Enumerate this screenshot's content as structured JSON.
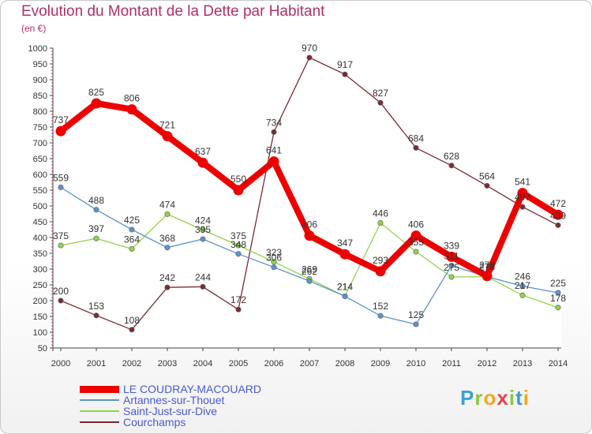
{
  "title": "Evolution du Montant de la Dette par Habitant",
  "unit": "(en €)",
  "brand": {
    "letters": [
      {
        "ch": "P",
        "color": "#3aa0d8"
      },
      {
        "ch": "r",
        "color": "#8cc63f"
      },
      {
        "ch": "o",
        "color": "#f5a623"
      },
      {
        "ch": "x",
        "color": "#e8434a"
      },
      {
        "ch": "i",
        "color": "#8cc63f"
      },
      {
        "ch": "t",
        "color": "#3aa0d8"
      },
      {
        "ch": "i",
        "color": "#f5a623"
      }
    ]
  },
  "chart_data": {
    "type": "line",
    "x": [
      "2000",
      "2001",
      "2002",
      "2003",
      "2004",
      "2005",
      "2006",
      "2007",
      "2008",
      "2009",
      "2010",
      "2011",
      "2012",
      "2013",
      "2014"
    ],
    "ylim": [
      50,
      1000
    ],
    "yticks": [
      50,
      100,
      150,
      200,
      250,
      300,
      350,
      400,
      450,
      500,
      550,
      600,
      650,
      700,
      750,
      800,
      850,
      900,
      950,
      1000
    ],
    "grid": false,
    "legend_position": "bottom-left",
    "series": [
      {
        "name": "LE COUDRAY-MACOUARD",
        "color": "#ee0000",
        "values": [
          737,
          825,
          806,
          721,
          637,
          550,
          641,
          406,
          347,
          293,
          406,
          339,
          278,
          541,
          472
        ],
        "labels": [
          "737",
          "825",
          "806",
          "721",
          "637",
          "550",
          "641",
          "406",
          "347",
          "293",
          "406",
          "339",
          "278",
          "541",
          "472"
        ]
      },
      {
        "name": "Artannes-sur-Thouet",
        "color": "#5b93cc",
        "values": [
          559,
          488,
          425,
          368,
          395,
          348,
          306,
          262,
          214,
          152,
          125,
          311,
          276,
          246,
          225
        ],
        "labels": [
          "559",
          "488",
          "425",
          "368",
          "395",
          "348",
          "306",
          "262",
          "214",
          "152",
          "125",
          "311",
          "276",
          "246",
          "225"
        ]
      },
      {
        "name": "Saint-Just-sur-Dive",
        "color": "#8fd44a",
        "values": [
          375,
          397,
          364,
          474,
          424,
          375,
          323,
          269,
          214,
          446,
          355,
          275,
          276,
          217,
          178
        ],
        "labels": [
          "375",
          "397",
          "364",
          "474",
          "424",
          "375",
          "323",
          "269",
          "214",
          "446",
          "355",
          "275",
          "276",
          "217",
          "178"
        ]
      },
      {
        "name": "Courchamps",
        "color": "#7a2a30",
        "values": [
          200,
          153,
          108,
          242,
          244,
          172,
          734,
          970,
          917,
          827,
          684,
          628,
          564,
          497,
          439
        ],
        "labels": [
          "200",
          "153",
          "108",
          "242",
          "244",
          "172",
          "734",
          "970",
          "917",
          "827",
          "684",
          "628",
          "564",
          "497",
          "439"
        ]
      }
    ]
  }
}
